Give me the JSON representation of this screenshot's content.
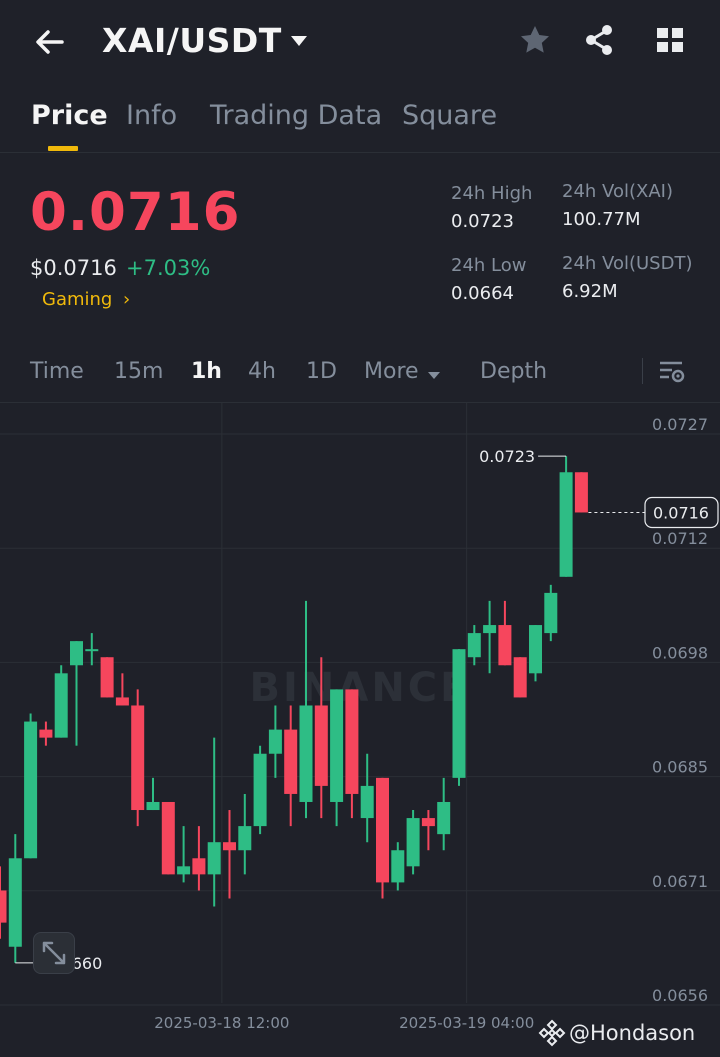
{
  "header": {
    "pair": "XAI/USDT",
    "icons": [
      "back-arrow-icon",
      "caret-down-icon",
      "star-icon",
      "share-icon",
      "grid-icon"
    ]
  },
  "tabs": [
    {
      "label": "Price",
      "active": true
    },
    {
      "label": "Info",
      "active": false
    },
    {
      "label": "Trading Data",
      "active": false
    },
    {
      "label": "Square",
      "active": false
    }
  ],
  "ticker": {
    "last_price": "0.0716",
    "fiat_price": "$0.0716",
    "change": "+7.03%",
    "category": "Gaming",
    "high_label": "24h High",
    "high_value": "0.0723",
    "low_label": "24h Low",
    "low_value": "0.0664",
    "vol_base_label": "24h Vol(XAI)",
    "vol_base_value": "100.77M",
    "vol_quote_label": "24h Vol(USDT)",
    "vol_quote_value": "6.92M"
  },
  "intervals": [
    {
      "label": "Time",
      "active": false
    },
    {
      "label": "15m",
      "active": false
    },
    {
      "label": "1h",
      "active": true
    },
    {
      "label": "4h",
      "active": false
    },
    {
      "label": "1D",
      "active": false
    },
    {
      "label": "More",
      "active": false
    },
    {
      "label": "Depth",
      "active": false
    }
  ],
  "colors": {
    "up": "#2ebd85",
    "down": "#f6465d",
    "accent": "#f0b90b",
    "background": "#1f2129"
  },
  "chart_data": {
    "type": "candlestick",
    "y_ticks": [
      "0.0727",
      "0.0712",
      "0.0698",
      "0.0685",
      "0.0671",
      "0.0656"
    ],
    "ylim": [
      0.0656,
      0.0727
    ],
    "x_ticks": [
      {
        "label": "2025-03-18 12:00",
        "index": 14.5
      },
      {
        "label": "2025-03-19 04:00",
        "index": 30.5
      }
    ],
    "max_label": "0.0723",
    "min_label": "0.0660",
    "current_price": "0.0716",
    "watermark": "BINANCE",
    "candles": [
      {
        "o": 0.0669,
        "h": 0.0672,
        "l": 0.0663,
        "c": 0.0665
      },
      {
        "o": 0.0662,
        "h": 0.0676,
        "l": 0.066,
        "c": 0.0673
      },
      {
        "o": 0.0673,
        "h": 0.0691,
        "l": 0.0673,
        "c": 0.069
      },
      {
        "o": 0.0689,
        "h": 0.069,
        "l": 0.0687,
        "c": 0.0688
      },
      {
        "o": 0.0688,
        "h": 0.0697,
        "l": 0.0688,
        "c": 0.0696
      },
      {
        "o": 0.0697,
        "h": 0.07,
        "l": 0.0687,
        "c": 0.07
      },
      {
        "o": 0.0699,
        "h": 0.0701,
        "l": 0.0697,
        "c": 0.0699
      },
      {
        "o": 0.0698,
        "h": 0.0698,
        "l": 0.0693,
        "c": 0.0693
      },
      {
        "o": 0.0693,
        "h": 0.0696,
        "l": 0.0692,
        "c": 0.0692
      },
      {
        "o": 0.0692,
        "h": 0.0694,
        "l": 0.0677,
        "c": 0.0679
      },
      {
        "o": 0.0679,
        "h": 0.0683,
        "l": 0.0679,
        "c": 0.068
      },
      {
        "o": 0.068,
        "h": 0.068,
        "l": 0.0671,
        "c": 0.0671
      },
      {
        "o": 0.0671,
        "h": 0.0677,
        "l": 0.067,
        "c": 0.0672
      },
      {
        "o": 0.0673,
        "h": 0.0677,
        "l": 0.0669,
        "c": 0.0671
      },
      {
        "o": 0.0671,
        "h": 0.0688,
        "l": 0.0667,
        "c": 0.0675
      },
      {
        "o": 0.0675,
        "h": 0.0679,
        "l": 0.0668,
        "c": 0.0674
      },
      {
        "o": 0.0674,
        "h": 0.0681,
        "l": 0.0671,
        "c": 0.0677
      },
      {
        "o": 0.0677,
        "h": 0.0687,
        "l": 0.0676,
        "c": 0.0686
      },
      {
        "o": 0.0686,
        "h": 0.0692,
        "l": 0.0683,
        "c": 0.0689
      },
      {
        "o": 0.0689,
        "h": 0.0692,
        "l": 0.0677,
        "c": 0.0681
      },
      {
        "o": 0.068,
        "h": 0.0705,
        "l": 0.0678,
        "c": 0.0692
      },
      {
        "o": 0.0692,
        "h": 0.0698,
        "l": 0.0678,
        "c": 0.0682
      },
      {
        "o": 0.068,
        "h": 0.0694,
        "l": 0.0677,
        "c": 0.0694
      },
      {
        "o": 0.0694,
        "h": 0.0694,
        "l": 0.0678,
        "c": 0.0681
      },
      {
        "o": 0.0678,
        "h": 0.0686,
        "l": 0.0675,
        "c": 0.0682
      },
      {
        "o": 0.0683,
        "h": 0.0683,
        "l": 0.0668,
        "c": 0.067
      },
      {
        "o": 0.067,
        "h": 0.0675,
        "l": 0.0669,
        "c": 0.0674
      },
      {
        "o": 0.0672,
        "h": 0.0679,
        "l": 0.0671,
        "c": 0.0678
      },
      {
        "o": 0.0678,
        "h": 0.0679,
        "l": 0.0674,
        "c": 0.0677
      },
      {
        "o": 0.0676,
        "h": 0.0683,
        "l": 0.0674,
        "c": 0.068
      },
      {
        "o": 0.0683,
        "h": 0.0699,
        "l": 0.0682,
        "c": 0.0699
      },
      {
        "o": 0.0698,
        "h": 0.0702,
        "l": 0.0697,
        "c": 0.0701
      },
      {
        "o": 0.0701,
        "h": 0.0705,
        "l": 0.0696,
        "c": 0.0702
      },
      {
        "o": 0.0702,
        "h": 0.0705,
        "l": 0.0697,
        "c": 0.0697
      },
      {
        "o": 0.0698,
        "h": 0.0698,
        "l": 0.0693,
        "c": 0.0693
      },
      {
        "o": 0.0696,
        "h": 0.0702,
        "l": 0.0695,
        "c": 0.0702
      },
      {
        "o": 0.0701,
        "h": 0.0707,
        "l": 0.07,
        "c": 0.0706
      },
      {
        "o": 0.0708,
        "h": 0.0723,
        "l": 0.0708,
        "c": 0.0721
      },
      {
        "o": 0.0721,
        "h": 0.0721,
        "l": 0.0716,
        "c": 0.0716
      }
    ]
  }
}
